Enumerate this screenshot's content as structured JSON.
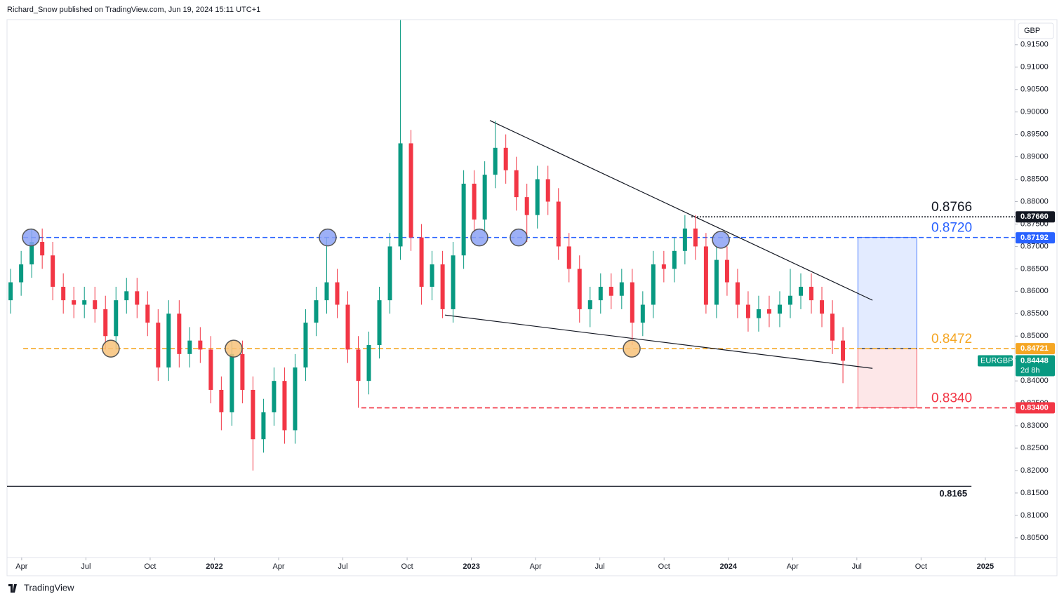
{
  "header": "Richard_Snow published on TradingView.com, Jun 19, 2024 15:11 UTC+1",
  "footer": "TradingView",
  "currency": "GBP",
  "chart_data": {
    "type": "candlestick",
    "symbol": "EURGBP",
    "countdown": "2d 8h",
    "up_color": "#089981",
    "down_color": "#f23645",
    "xlim": [
      2021.193,
      2025.115
    ],
    "ylim": [
      0.8006,
      0.9206
    ],
    "xticks": [
      {
        "value": 2021.25,
        "label": "Apr"
      },
      {
        "value": 2021.5,
        "label": "Jul"
      },
      {
        "value": 2021.75,
        "label": "Oct"
      },
      2022,
      {
        "value": 2022.25,
        "label": "Apr"
      },
      {
        "value": 2022.5,
        "label": "Jul"
      },
      {
        "value": 2022.75,
        "label": "Oct"
      },
      2023,
      {
        "value": 2023.25,
        "label": "Apr"
      },
      {
        "value": 2023.5,
        "label": "Jul"
      },
      {
        "value": 2023.75,
        "label": "Oct"
      },
      2024,
      {
        "value": 2024.25,
        "label": "Apr"
      },
      {
        "value": 2024.5,
        "label": "Jul"
      },
      {
        "value": 2024.75,
        "label": "Oct"
      },
      2025
    ],
    "yticks": [
      {
        "value": 0.805,
        "label": "0.80500"
      },
      {
        "value": 0.81,
        "label": "0.81000"
      },
      {
        "value": 0.815,
        "label": "0.81500"
      },
      {
        "value": 0.82,
        "label": "0.82000"
      },
      {
        "value": 0.825,
        "label": "0.82500"
      },
      {
        "value": 0.83,
        "label": "0.83000"
      },
      {
        "value": 0.835,
        "label": "0.83500"
      },
      {
        "value": 0.84,
        "label": "0.84000"
      },
      {
        "value": 0.845,
        "label": "0.84500"
      },
      {
        "value": 0.85,
        "label": "0.85000"
      },
      {
        "value": 0.855,
        "label": "0.85500"
      },
      {
        "value": 0.86,
        "label": "0.86000"
      },
      {
        "value": 0.865,
        "label": "0.86500"
      },
      {
        "value": 0.87,
        "label": "0.87000"
      },
      {
        "value": 0.875,
        "label": "0.87500"
      },
      {
        "value": 0.88,
        "label": "0.88000"
      },
      {
        "value": 0.885,
        "label": "0.88500"
      },
      {
        "value": 0.89,
        "label": "0.89000"
      },
      {
        "value": 0.895,
        "label": "0.89500"
      },
      {
        "value": 0.9,
        "label": "0.90000"
      },
      {
        "value": 0.905,
        "label": "0.90500"
      },
      {
        "value": 0.91,
        "label": "0.91000"
      },
      {
        "value": 0.915,
        "label": "0.91500"
      }
    ],
    "x": [
      2021.207,
      2021.248,
      2021.289,
      2021.33,
      2021.371,
      2021.412,
      2021.453,
      2021.494,
      2021.535,
      2021.576,
      2021.617,
      2021.658,
      2021.699,
      2021.74,
      2021.781,
      2021.822,
      2021.863,
      2021.904,
      2021.945,
      2021.986,
      2022.027,
      2022.068,
      2022.109,
      2022.15,
      2022.191,
      2022.232,
      2022.273,
      2022.314,
      2022.355,
      2022.396,
      2022.437,
      2022.478,
      2022.519,
      2022.56,
      2022.601,
      2022.642,
      2022.683,
      2022.724,
      2022.765,
      2022.806,
      2022.847,
      2022.888,
      2022.929,
      2022.97,
      2023.011,
      2023.052,
      2023.093,
      2023.134,
      2023.175,
      2023.216,
      2023.257,
      2023.298,
      2023.339,
      2023.38,
      2023.421,
      2023.462,
      2023.503,
      2023.544,
      2023.585,
      2023.626,
      2023.667,
      2023.708,
      2023.749,
      2023.79,
      2023.831,
      2023.872,
      2023.913,
      2023.954,
      2023.995,
      2024.036,
      2024.077,
      2024.118,
      2024.159,
      2024.2,
      2024.241,
      2024.282,
      2024.323,
      2024.364,
      2024.405,
      2024.446
    ],
    "open": [
      0.858,
      0.862,
      0.866,
      0.871,
      0.868,
      0.861,
      0.858,
      0.857,
      0.858,
      0.856,
      0.85,
      0.858,
      0.86,
      0.857,
      0.853,
      0.843,
      0.855,
      0.846,
      0.849,
      0.847,
      0.838,
      0.833,
      0.846,
      0.838,
      0.827,
      0.833,
      0.84,
      0.829,
      0.843,
      0.853,
      0.858,
      0.862,
      0.857,
      0.847,
      0.84,
      0.848,
      0.858,
      0.87,
      0.893,
      0.872,
      0.861,
      0.866,
      0.856,
      0.868,
      0.884,
      0.876,
      0.886,
      0.892,
      0.887,
      0.881,
      0.877,
      0.885,
      0.88,
      0.87,
      0.865,
      0.856,
      0.858,
      0.861,
      0.859,
      0.862,
      0.853,
      0.857,
      0.866,
      0.865,
      0.869,
      0.874,
      0.87,
      0.857,
      0.867,
      0.862,
      0.857,
      0.854,
      0.856,
      0.855,
      0.857,
      0.859,
      0.861,
      0.858,
      0.855,
      0.849
    ],
    "high": [
      0.865,
      0.869,
      0.874,
      0.874,
      0.871,
      0.864,
      0.861,
      0.861,
      0.861,
      0.859,
      0.861,
      0.863,
      0.863,
      0.86,
      0.856,
      0.858,
      0.858,
      0.852,
      0.852,
      0.85,
      0.841,
      0.849,
      0.849,
      0.841,
      0.836,
      0.843,
      0.843,
      0.846,
      0.856,
      0.861,
      0.872,
      0.865,
      0.86,
      0.85,
      0.851,
      0.861,
      0.873,
      0.9205,
      0.896,
      0.875,
      0.869,
      0.869,
      0.871,
      0.887,
      0.887,
      0.889,
      0.898,
      0.895,
      0.89,
      0.884,
      0.888,
      0.888,
      0.883,
      0.873,
      0.868,
      0.861,
      0.864,
      0.864,
      0.865,
      0.865,
      0.86,
      0.869,
      0.869,
      0.872,
      0.877,
      0.877,
      0.873,
      0.87,
      0.87,
      0.865,
      0.86,
      0.859,
      0.859,
      0.86,
      0.865,
      0.864,
      0.864,
      0.861,
      0.858,
      0.852
    ],
    "low": [
      0.855,
      0.859,
      0.863,
      0.865,
      0.858,
      0.855,
      0.854,
      0.854,
      0.853,
      0.847,
      0.847,
      0.855,
      0.854,
      0.85,
      0.84,
      0.84,
      0.843,
      0.843,
      0.844,
      0.835,
      0.829,
      0.83,
      0.835,
      0.82,
      0.824,
      0.83,
      0.826,
      0.826,
      0.84,
      0.85,
      0.855,
      0.854,
      0.844,
      0.834,
      0.837,
      0.845,
      0.855,
      0.867,
      0.869,
      0.857,
      0.858,
      0.854,
      0.853,
      0.865,
      0.873,
      0.873,
      0.883,
      0.884,
      0.878,
      0.871,
      0.874,
      0.877,
      0.867,
      0.862,
      0.853,
      0.852,
      0.855,
      0.856,
      0.856,
      0.848,
      0.85,
      0.854,
      0.862,
      0.862,
      0.866,
      0.867,
      0.855,
      0.854,
      0.859,
      0.854,
      0.851,
      0.851,
      0.852,
      0.852,
      0.854,
      0.856,
      0.855,
      0.852,
      0.846,
      0.8395
    ],
    "close": [
      0.862,
      0.866,
      0.871,
      0.868,
      0.861,
      0.858,
      0.857,
      0.858,
      0.856,
      0.85,
      0.858,
      0.86,
      0.857,
      0.853,
      0.843,
      0.855,
      0.846,
      0.849,
      0.847,
      0.838,
      0.833,
      0.846,
      0.838,
      0.827,
      0.833,
      0.84,
      0.829,
      0.843,
      0.853,
      0.858,
      0.862,
      0.857,
      0.847,
      0.84,
      0.848,
      0.858,
      0.87,
      0.893,
      0.872,
      0.861,
      0.866,
      0.856,
      0.868,
      0.884,
      0.876,
      0.886,
      0.892,
      0.887,
      0.881,
      0.877,
      0.885,
      0.88,
      0.87,
      0.865,
      0.856,
      0.858,
      0.861,
      0.859,
      0.862,
      0.853,
      0.857,
      0.866,
      0.865,
      0.869,
      0.874,
      0.87,
      0.857,
      0.867,
      0.862,
      0.857,
      0.854,
      0.856,
      0.855,
      0.857,
      0.859,
      0.861,
      0.858,
      0.855,
      0.849,
      0.8445
    ],
    "levels": [
      {
        "value": 0.8766,
        "label": "0.8766",
        "color": "#131722",
        "style": "dotted",
        "x_start": 2023.856
      },
      {
        "value": 0.872,
        "label": "0.8720",
        "color": "#2962ff",
        "style": "dashed",
        "x_start": 2021.256
      },
      {
        "value": 0.8472,
        "label": "0.8472",
        "color": "#f5a623",
        "style": "dashed",
        "x_start": 2021.256
      },
      {
        "value": 0.834,
        "label": "0.8340",
        "color": "#f23645",
        "style": "dashed",
        "x_start": 2022.572
      },
      {
        "value": 0.8165,
        "label": "0.8165",
        "color": "#131722",
        "style": "solid",
        "x_start": 2021.193,
        "x_end": 2024.946
      }
    ],
    "price_tags": [
      {
        "value": 0.8766,
        "label": "0.87660",
        "color": "#131722"
      },
      {
        "value": 0.87192,
        "label": "0.87192",
        "color": "#2962ff"
      },
      {
        "value": 0.84721,
        "label": "0.84721",
        "color": "#f5a623"
      },
      {
        "value": 0.834,
        "label": "0.83400",
        "color": "#f23645"
      }
    ],
    "last_price": {
      "value": 0.84448,
      "label": "0.84448",
      "color": "#089981"
    },
    "trendlines": [
      {
        "x": [
          2023.072,
          2024.561
        ],
        "y": [
          0.8981,
          0.858
        ]
      },
      {
        "x": [
          2022.897,
          2024.561
        ],
        "y": [
          0.8547,
          0.8428
        ]
      }
    ],
    "markers": [
      {
        "x": 2021.286,
        "y": 0.872,
        "color": "#8ca2f5"
      },
      {
        "x": 2022.441,
        "y": 0.872,
        "color": "#8ca2f5"
      },
      {
        "x": 2023.031,
        "y": 0.872,
        "color": "#8ca2f5"
      },
      {
        "x": 2023.184,
        "y": 0.872,
        "color": "#8ca2f5"
      },
      {
        "x": 2023.971,
        "y": 0.8715,
        "color": "#8ca2f5"
      },
      {
        "x": 2021.597,
        "y": 0.8472,
        "color": "#f7c27a"
      },
      {
        "x": 2022.075,
        "y": 0.8472,
        "color": "#f7c27a"
      },
      {
        "x": 2023.624,
        "y": 0.8472,
        "color": "#f7c27a"
      }
    ],
    "position": {
      "x_start": 2024.504,
      "x_end": 2024.733,
      "target": 0.872,
      "entry": 0.8472,
      "stop": 0.834
    }
  }
}
